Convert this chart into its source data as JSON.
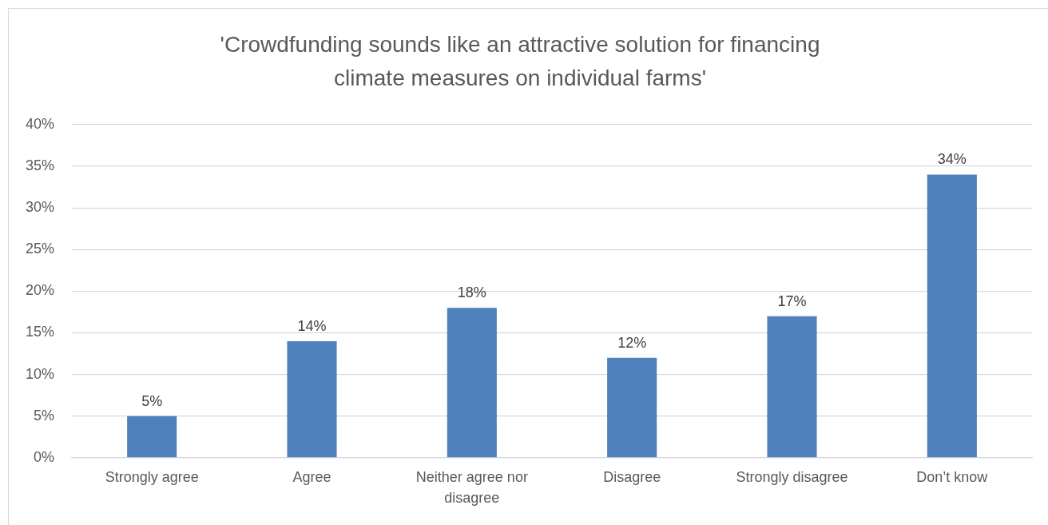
{
  "chart_data": {
    "type": "bar",
    "title": "'Crowdfunding sounds like an attractive solution for financing climate measures on individual farms'",
    "categories": [
      "Strongly agree",
      "Agree",
      "Neither agree nor disagree",
      "Disagree",
      "Strongly disagree",
      "Don’t know"
    ],
    "values": [
      5,
      14,
      18,
      12,
      17,
      34
    ],
    "value_labels": [
      "5%",
      "14%",
      "18%",
      "12%",
      "17%",
      "34%"
    ],
    "color": "#4f81bd",
    "ylim": [
      0,
      40
    ],
    "yticks": [
      {
        "value": 0,
        "label": "0%"
      },
      {
        "value": 5,
        "label": "5%"
      },
      {
        "value": 10,
        "label": "10%"
      },
      {
        "value": 15,
        "label": "15%"
      },
      {
        "value": 20,
        "label": "20%"
      },
      {
        "value": 25,
        "label": "25%"
      },
      {
        "value": 30,
        "label": "30%"
      },
      {
        "value": 35,
        "label": "35%"
      },
      {
        "value": 40,
        "label": "40%"
      }
    ],
    "grid": "y",
    "legend": false
  }
}
